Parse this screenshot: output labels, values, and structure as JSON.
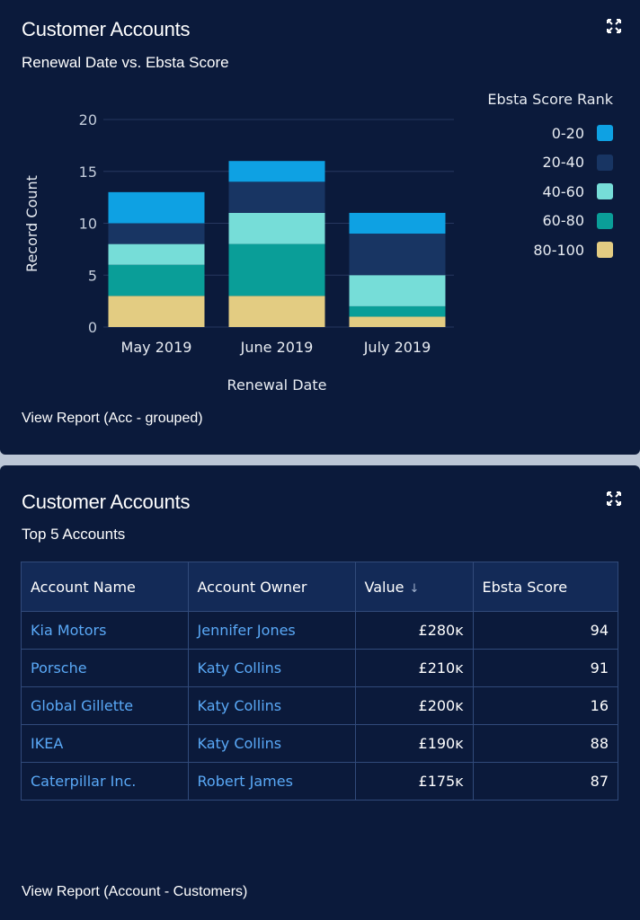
{
  "card1": {
    "title": "Customer Accounts",
    "subtitle": "Renewal Date vs. Ebsta Score",
    "view_report": "View Report (Acc - grouped)"
  },
  "card2": {
    "title": "Customer Accounts",
    "subtitle": "Top 5 Accounts",
    "view_report": "View Report (Account - Customers)"
  },
  "legend": {
    "title": "Ebsta Score Rank",
    "items": [
      {
        "label": "0-20",
        "color": "#0ea1e3"
      },
      {
        "label": "20-40",
        "color": "#183563"
      },
      {
        "label": "40-60",
        "color": "#76ddd8"
      },
      {
        "label": "60-80",
        "color": "#0a9e98"
      },
      {
        "label": "80-100",
        "color": "#e3cc82"
      }
    ]
  },
  "chart_data": {
    "type": "bar",
    "stacked": true,
    "title": "Renewal Date vs. Ebsta Score",
    "xlabel": "Renewal Date",
    "ylabel": "Record Count",
    "ylim": [
      0,
      20
    ],
    "yticks": [
      "0",
      "5",
      "10",
      "15",
      "20"
    ],
    "categories": [
      "May 2019",
      "June 2019",
      "July 2019"
    ],
    "series": [
      {
        "name": "80-100",
        "color": "#e3cc82",
        "values": [
          3,
          3,
          1
        ]
      },
      {
        "name": "60-80",
        "color": "#0a9e98",
        "values": [
          3,
          5,
          1
        ]
      },
      {
        "name": "40-60",
        "color": "#76ddd8",
        "values": [
          2,
          3,
          3
        ]
      },
      {
        "name": "20-40",
        "color": "#183563",
        "values": [
          2,
          3,
          4
        ]
      },
      {
        "name": "0-20",
        "color": "#0ea1e3",
        "values": [
          3,
          2,
          2
        ]
      }
    ]
  },
  "table": {
    "headers": [
      "Account Name",
      "Account Owner",
      "Value",
      "Ebsta Score"
    ],
    "sort_indicator": "↓",
    "rows": [
      {
        "name": "Kia Motors",
        "owner": "Jennifer Jones",
        "value": "£280ᴋ",
        "score": "94"
      },
      {
        "name": "Porsche",
        "owner": "Katy Collins",
        "value": "£210ᴋ",
        "score": "91"
      },
      {
        "name": "Global Gillette",
        "owner": "Katy Collins",
        "value": "£200ᴋ",
        "score": "16"
      },
      {
        "name": "IKEA",
        "owner": "Katy Collins",
        "value": "£190ᴋ",
        "score": "88"
      },
      {
        "name": "Caterpillar Inc.",
        "owner": "Robert James",
        "value": "£175ᴋ",
        "score": "87"
      }
    ]
  }
}
